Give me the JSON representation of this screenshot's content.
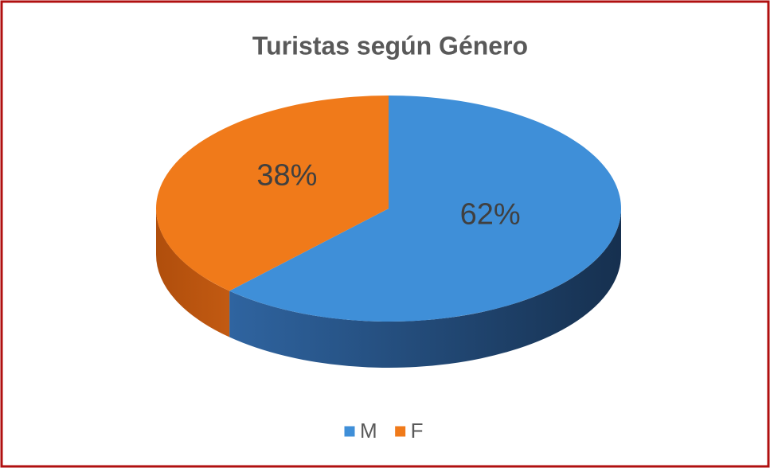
{
  "chart_data": {
    "type": "pie",
    "title": "Turistas según Género",
    "categories": [
      "M",
      "F"
    ],
    "values": [
      62,
      38
    ],
    "value_labels": [
      "62%",
      "38%"
    ],
    "colors": [
      "#3f8fd8",
      "#f07a1a"
    ],
    "legend": "bottom"
  }
}
